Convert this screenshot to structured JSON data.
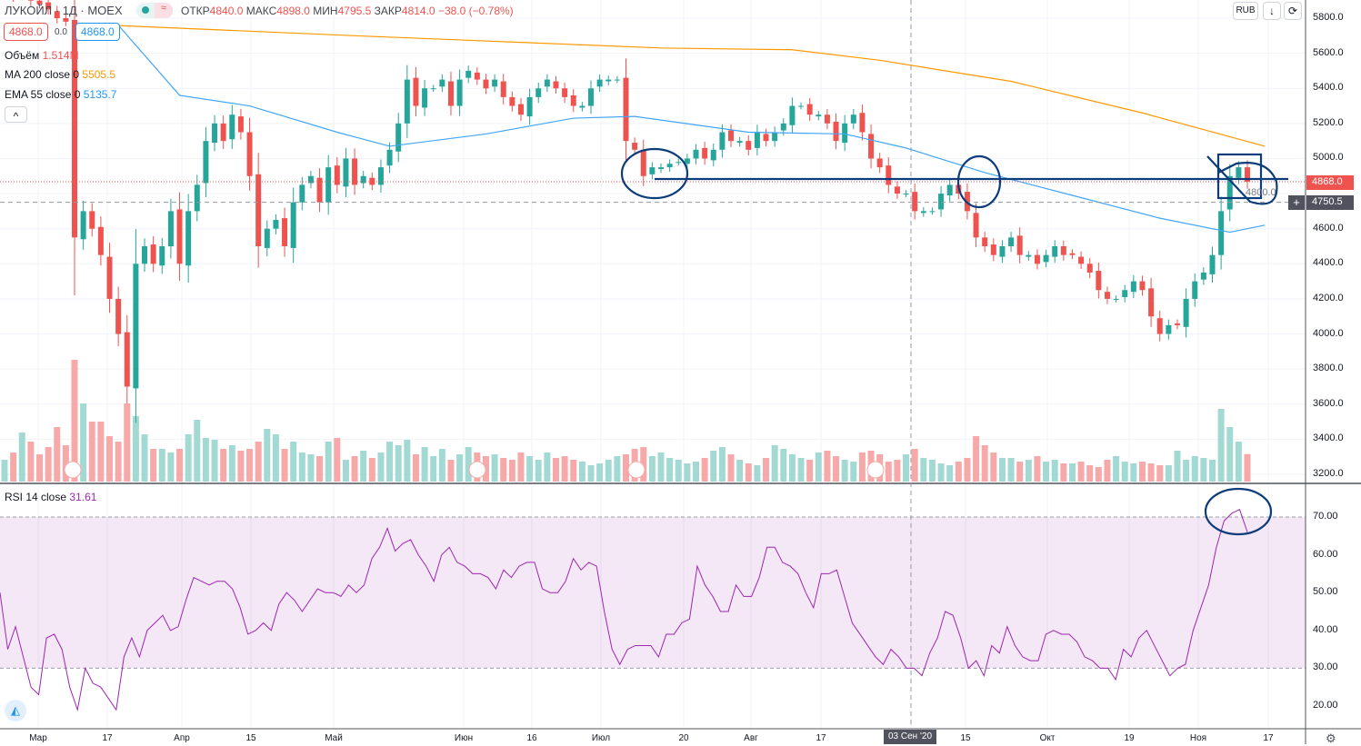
{
  "header": {
    "symbol": "ЛУКОЙЛ · 1Д · MOEX",
    "open_label": "ОТКР",
    "open": "4840.0",
    "high_label": "МАКС",
    "high": "4898.0",
    "low_label": "МИН",
    "low": "4795.5",
    "close_label": "ЗАКР",
    "close": "4814.0",
    "change": "−38.0 (−0.78%)",
    "status_icon": "≈"
  },
  "trade": {
    "sell": "4868.0",
    "spread": "0.0",
    "buy": "4868.0"
  },
  "indicators": {
    "volume_label": "Объём",
    "volume_value": "1.514M",
    "ma_label": "MA 200 close 0",
    "ma_value": "5505.5",
    "ema_label": "EMA 55 close 0",
    "ema_value": "5135.7",
    "collapse": "^"
  },
  "rsi": {
    "label": "RSI 14 close",
    "value": "31.61"
  },
  "currency": "RUB",
  "badges": {
    "last": "4868.0",
    "crosshair": "4750.5"
  },
  "colors": {
    "up": "#26a69a",
    "down": "#ef5350",
    "ma": "#ff9800",
    "ema": "#42a5f5",
    "rsi": "#9c27b0",
    "annot": "#0d3c7a"
  },
  "chart_data": {
    "type": "candlestick",
    "title": "ЛУКОЙЛ · 1Д · MOEX",
    "ylim": [
      3200,
      5800
    ],
    "yticks": [
      "5800.0",
      "5600.0",
      "5400.0",
      "5200.0",
      "5000.0",
      "4800.0",
      "4600.0",
      "4400.0",
      "4200.0",
      "4000.0",
      "3800.0",
      "3600.0",
      "3400.0",
      "3200.0"
    ],
    "xticks": [
      "Мар",
      "17",
      "Апр",
      "15",
      "Май",
      "Июн",
      "16",
      "Июл",
      "20",
      "Авг",
      "17",
      "03 Сен '20",
      "15",
      "Окт",
      "19",
      "Ноя",
      "17"
    ],
    "close": [
      5950,
      5920,
      5960,
      5900,
      5880,
      5850,
      5800,
      5780,
      4550,
      4700,
      4600,
      4450,
      4200,
      4000,
      3700,
      4400,
      4500,
      4400,
      4500,
      4700,
      4400,
      4700,
      4850,
      5100,
      5200,
      5100,
      5250,
      5150,
      4900,
      4500,
      4600,
      4650,
      4500,
      4750,
      4850,
      4900,
      4750,
      4950,
      4850,
      5000,
      4850,
      4900,
      4850,
      4950,
      5050,
      5200,
      5450,
      5300,
      5400,
      5400,
      5450,
      5300,
      5450,
      5500,
      5450,
      5400,
      5450,
      5350,
      5300,
      5250,
      5350,
      5400,
      5450,
      5400,
      5350,
      5300,
      5300,
      5400,
      5450,
      5450,
      5450,
      5100,
      5050,
      4900,
      4950,
      4950,
      4970,
      4980,
      5000,
      5050,
      5000,
      5050,
      5150,
      5100,
      5100,
      5050,
      5150,
      5100,
      5150,
      5200,
      5300,
      5300,
      5250,
      5250,
      5200,
      5100,
      5200,
      5250,
      5150,
      5000,
      4950,
      4850,
      4800,
      4800,
      4700,
      4700,
      4700,
      4800,
      4850,
      4800,
      4700,
      4550,
      4500,
      4450,
      4500,
      4550,
      4450,
      4450,
      4400,
      4450,
      4500,
      4450,
      4450,
      4400,
      4350,
      4250,
      4200,
      4200,
      4250,
      4300,
      4250,
      4100,
      4000,
      4050,
      4050,
      4200,
      4300,
      4350,
      4450,
      4700,
      4900,
      4950,
      4868
    ],
    "volume_millions": [
      1.2,
      1.6,
      2.7,
      2.2,
      1.5,
      1.9,
      3.0,
      2.0,
      6.7,
      4.3,
      3.3,
      3.3,
      2.5,
      2.2,
      4.3,
      3.6,
      2.6,
      1.8,
      1.8,
      1.6,
      1.8,
      2.6,
      3.4,
      2.4,
      2.3,
      1.8,
      2.0,
      1.7,
      1.8,
      2.2,
      2.9,
      2.6,
      1.8,
      2.2,
      1.6,
      1.5,
      1.4,
      2.2,
      2.4,
      1.2,
      1.4,
      1.7,
      1.3,
      1.6,
      2.2,
      2.0,
      2.3,
      1.5,
      1.9,
      1.4,
      1.8,
      1.2,
      1.5,
      1.9,
      1.6,
      1.4,
      1.5,
      1.3,
      1.2,
      1.6,
      1.4,
      1.2,
      1.6,
      1.3,
      1.4,
      1.2,
      1.1,
      0.9,
      1.0,
      1.2,
      1.4,
      1.5,
      1.8,
      1.9,
      1.4,
      1.6,
      1.3,
      1.2,
      1.0,
      1.1,
      1.3,
      1.7,
      1.9,
      1.5,
      1.2,
      1.0,
      0.9,
      1.3,
      2.0,
      1.8,
      1.5,
      1.3,
      1.2,
      1.6,
      1.7,
      1.4,
      1.2,
      1.1,
      1.6,
      1.7,
      1.5,
      1.1,
      1.2,
      1.5,
      1.8,
      1.3,
      1.2,
      1.0,
      0.9,
      1.1,
      1.3,
      2.5,
      2.0,
      1.6,
      1.3,
      1.3,
      1.1,
      1.2,
      1.4,
      1.1,
      1.2,
      1.0,
      1.0,
      1.1,
      0.9,
      0.8,
      1.2,
      1.4,
      1.1,
      1.0,
      1.1,
      1.0,
      0.9,
      0.9,
      1.7,
      1.2,
      1.4,
      1.3,
      1.2,
      4.0,
      3.0,
      2.2,
      1.514
    ],
    "ma200": [
      [
        12,
        5760
      ],
      [
        40,
        5700
      ],
      [
        60,
        5660
      ],
      [
        75,
        5630
      ],
      [
        90,
        5620
      ],
      [
        100,
        5560
      ],
      [
        115,
        5440
      ],
      [
        130,
        5260
      ],
      [
        144,
        5070
      ]
    ],
    "ema55": [
      [
        13,
        5760
      ],
      [
        20,
        5360
      ],
      [
        28,
        5300
      ],
      [
        38,
        5150
      ],
      [
        44,
        5070
      ],
      [
        55,
        5140
      ],
      [
        65,
        5230
      ],
      [
        72,
        5240
      ],
      [
        85,
        5150
      ],
      [
        96,
        5140
      ],
      [
        103,
        5060
      ],
      [
        112,
        4920
      ],
      [
        122,
        4790
      ],
      [
        132,
        4660
      ],
      [
        140,
        4580
      ],
      [
        144,
        4620
      ]
    ],
    "rsi": {
      "ylim": [
        20,
        70
      ],
      "levels": [
        70,
        30
      ],
      "yticks": [
        "70.00",
        "60.00",
        "50.00",
        "40.00",
        "30.00",
        "20.00"
      ],
      "values": [
        50,
        35,
        41,
        33,
        25,
        23,
        38,
        39,
        35,
        25,
        19,
        30,
        26,
        25,
        22,
        19,
        33,
        38,
        33,
        40,
        42,
        44,
        40,
        41,
        48,
        54,
        53,
        52,
        53,
        53,
        51,
        46,
        39,
        40,
        42,
        40,
        47,
        50,
        48,
        45,
        48,
        51,
        50,
        50,
        49,
        52,
        50,
        52,
        59,
        62,
        67,
        61,
        63,
        64,
        60,
        57,
        53,
        60,
        62,
        58,
        57,
        55,
        55,
        54,
        51,
        56,
        54,
        57,
        58,
        58,
        51,
        50,
        50,
        53,
        59,
        56,
        58,
        57,
        45,
        35,
        31,
        35,
        36,
        36,
        36,
        33,
        39,
        39,
        42,
        43,
        57,
        52,
        49,
        45,
        45,
        52,
        49,
        49,
        54,
        62,
        62,
        58,
        57,
        55,
        50,
        46,
        55,
        55,
        56,
        49,
        42,
        39,
        36,
        33,
        31,
        35,
        33,
        30,
        30,
        28,
        34,
        38,
        45,
        44,
        38,
        30,
        32,
        28,
        36,
        34,
        41,
        36,
        33,
        32,
        32,
        39,
        40,
        39,
        39,
        37,
        33,
        32,
        30,
        30,
        27,
        35,
        33,
        38,
        40,
        36,
        32,
        28,
        30,
        31,
        40,
        46,
        52,
        62,
        69,
        71,
        72,
        66
      ]
    }
  }
}
